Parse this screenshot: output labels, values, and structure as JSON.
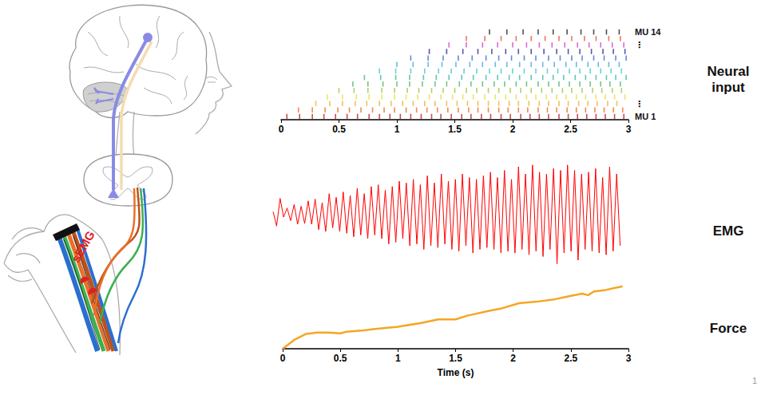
{
  "illustration": {
    "label": "sEMG"
  },
  "page_number": "1",
  "chart_data": [
    {
      "type": "raster",
      "title": "Neural input",
      "xlim": [
        0,
        3
      ],
      "xticks": [
        0,
        0.5,
        1,
        1.5,
        2,
        2.5,
        3
      ],
      "tick_labels": "x",
      "unit_labels": [
        "MU 14",
        "⋮",
        "⋮",
        "MU 1"
      ],
      "units": [
        {
          "color": "#c02020",
          "spikes": [
            0.05,
            0.16,
            0.27,
            0.37,
            0.47,
            0.57,
            0.66,
            0.76,
            0.85,
            0.94,
            1.03,
            1.12,
            1.21,
            1.3,
            1.38,
            1.47,
            1.56,
            1.64,
            1.73,
            1.81,
            1.9,
            1.98,
            2.07,
            2.15,
            2.23,
            2.31,
            2.4,
            2.48,
            2.56,
            2.64,
            2.72,
            2.8,
            2.88,
            2.96
          ]
        },
        {
          "color": "#e8702a",
          "spikes": [
            0.15,
            0.27,
            0.38,
            0.49,
            0.59,
            0.69,
            0.79,
            0.89,
            0.98,
            1.08,
            1.17,
            1.26,
            1.35,
            1.44,
            1.53,
            1.62,
            1.7,
            1.79,
            1.88,
            1.96,
            2.05,
            2.13,
            2.22,
            2.3,
            2.38,
            2.47,
            2.55,
            2.63,
            2.71,
            2.79,
            2.87,
            2.95
          ]
        },
        {
          "color": "#f0b030",
          "spikes": [
            0.3,
            0.42,
            0.53,
            0.64,
            0.74,
            0.85,
            0.95,
            1.05,
            1.14,
            1.24,
            1.33,
            1.43,
            1.52,
            1.61,
            1.7,
            1.79,
            1.88,
            1.97,
            2.05,
            2.14,
            2.23,
            2.31,
            2.4,
            2.48,
            2.57,
            2.65,
            2.73,
            2.82,
            2.9
          ]
        },
        {
          "color": "#e6e03a",
          "spikes": [
            0.4,
            0.53,
            0.65,
            0.76,
            0.87,
            0.98,
            1.08,
            1.18,
            1.28,
            1.38,
            1.48,
            1.57,
            1.66,
            1.76,
            1.85,
            1.94,
            2.03,
            2.12,
            2.2,
            2.29,
            2.38,
            2.46,
            2.55,
            2.63,
            2.72,
            2.8,
            2.88,
            2.97
          ]
        },
        {
          "color": "#9ac93c",
          "spikes": [
            0.5,
            0.63,
            0.75,
            0.87,
            0.98,
            1.09,
            1.19,
            1.3,
            1.4,
            1.5,
            1.6,
            1.69,
            1.79,
            1.88,
            1.98,
            2.07,
            2.16,
            2.25,
            2.34,
            2.43,
            2.51,
            2.6,
            2.69,
            2.77,
            2.86,
            2.94
          ]
        },
        {
          "color": "#49b86a",
          "spikes": [
            0.62,
            0.75,
            0.88,
            1.0,
            1.11,
            1.22,
            1.33,
            1.43,
            1.54,
            1.64,
            1.74,
            1.84,
            1.93,
            2.03,
            2.12,
            2.22,
            2.31,
            2.4,
            2.49,
            2.58,
            2.67,
            2.76,
            2.84,
            2.93
          ]
        },
        {
          "color": "#3cb8a0",
          "spikes": [
            0.72,
            0.86,
            0.99,
            1.11,
            1.23,
            1.34,
            1.45,
            1.56,
            1.66,
            1.77,
            1.87,
            1.97,
            2.06,
            2.16,
            2.26,
            2.35,
            2.44,
            2.54,
            2.63,
            2.72,
            2.81,
            2.89,
            2.98
          ]
        },
        {
          "color": "#40c8c8",
          "spikes": [
            0.85,
            0.99,
            1.12,
            1.24,
            1.36,
            1.47,
            1.58,
            1.69,
            1.8,
            1.9,
            2.0,
            2.1,
            2.2,
            2.3,
            2.39,
            2.49,
            2.58,
            2.67,
            2.76,
            2.85,
            2.94
          ]
        },
        {
          "color": "#3fa9e0",
          "spikes": [
            1.0,
            1.14,
            1.27,
            1.39,
            1.51,
            1.63,
            1.74,
            1.85,
            1.95,
            2.06,
            2.16,
            2.26,
            2.36,
            2.46,
            2.55,
            2.65,
            2.74,
            2.83,
            2.92
          ]
        },
        {
          "color": "#3a6fd0",
          "spikes": [
            1.12,
            1.27,
            1.4,
            1.53,
            1.65,
            1.77,
            1.88,
            1.99,
            2.1,
            2.2,
            2.31,
            2.41,
            2.51,
            2.6,
            2.7,
            2.79,
            2.89,
            2.98
          ]
        },
        {
          "color": "#2c2c8c",
          "spikes": [
            1.28,
            1.43,
            1.57,
            1.7,
            1.82,
            1.94,
            2.05,
            2.16,
            2.27,
            2.38,
            2.48,
            2.58,
            2.68,
            2.78,
            2.87,
            2.97
          ]
        },
        {
          "color": "#d43fd4",
          "spikes": [
            1.45,
            1.6,
            1.74,
            1.87,
            2.0,
            2.12,
            2.23,
            2.34,
            2.45,
            2.56,
            2.66,
            2.76,
            2.86,
            2.96
          ]
        },
        {
          "color": "#e8553a",
          "spikes": [
            1.6,
            1.76,
            1.9,
            2.03,
            2.16,
            2.28,
            2.4,
            2.51,
            2.62,
            2.72,
            2.83,
            2.93
          ]
        },
        {
          "color": "#222222",
          "spikes": [
            1.8,
            1.95,
            2.09,
            2.22,
            2.35,
            2.47,
            2.59,
            2.7,
            2.81,
            2.92
          ]
        }
      ]
    },
    {
      "type": "line",
      "title": "EMG",
      "color": "#ff0000",
      "tick_labels": false,
      "xlim": [
        0,
        3
      ],
      "ylim": [
        -1.5,
        1.5
      ],
      "x": [
        0,
        0.03,
        0.06,
        0.09,
        0.12,
        0.15,
        0.18,
        0.21,
        0.24,
        0.27,
        0.3,
        0.33,
        0.36,
        0.39,
        0.42,
        0.45,
        0.48,
        0.51,
        0.54,
        0.57,
        0.6,
        0.63,
        0.66,
        0.69,
        0.72,
        0.75,
        0.78,
        0.81,
        0.84,
        0.87,
        0.9,
        0.93,
        0.96,
        0.99,
        1.02,
        1.05,
        1.08,
        1.11,
        1.14,
        1.17,
        1.2,
        1.23,
        1.26,
        1.29,
        1.32,
        1.35,
        1.38,
        1.41,
        1.44,
        1.47,
        1.5,
        1.53,
        1.56,
        1.59,
        1.62,
        1.65,
        1.68,
        1.71,
        1.74,
        1.77,
        1.8,
        1.83,
        1.86,
        1.89,
        1.92,
        1.95,
        1.98,
        2.01,
        2.04,
        2.07,
        2.1,
        2.13,
        2.16,
        2.19,
        2.22,
        2.25,
        2.28,
        2.31,
        2.34,
        2.37,
        2.4,
        2.43,
        2.46,
        2.49,
        2.52,
        2.55,
        2.58,
        2.61,
        2.64,
        2.67,
        2.7,
        2.73,
        2.76,
        2.79,
        2.82,
        2.85,
        2.88,
        2.91,
        2.94,
        2.97
      ],
      "values": [
        0.05,
        -0.35,
        0.42,
        -0.1,
        0.15,
        -0.2,
        0.25,
        -0.3,
        0.2,
        -0.28,
        0.35,
        -0.3,
        0.4,
        -0.45,
        0.3,
        -0.5,
        0.55,
        -0.4,
        0.45,
        -0.5,
        0.6,
        -0.55,
        0.5,
        -0.65,
        0.7,
        -0.6,
        0.55,
        -0.7,
        0.75,
        -0.6,
        0.8,
        -0.7,
        0.65,
        -0.85,
        0.75,
        -0.8,
        0.9,
        -0.7,
        0.85,
        -0.9,
        0.95,
        -0.85,
        0.8,
        -1.0,
        1.05,
        -0.9,
        0.85,
        -0.95,
        1.1,
        -0.85,
        0.9,
        -1.0,
        0.95,
        -1.05,
        1.1,
        -0.9,
        1.0,
        -1.1,
        0.95,
        -1.0,
        1.05,
        -0.95,
        1.15,
        -1.0,
        1.0,
        -1.1,
        1.2,
        -1.05,
        0.95,
        -1.1,
        1.3,
        -1.0,
        1.1,
        -1.15,
        1.35,
        -1.05,
        1.15,
        -1.2,
        1.1,
        -1.0,
        1.25,
        -1.4,
        1.2,
        -1.1,
        1.35,
        -1.05,
        1.2,
        -1.3,
        1.1,
        -1.0,
        1.15,
        -1.05,
        1.25,
        -1.1,
        1.0,
        -1.15,
        1.3,
        -1.05,
        1.1,
        -0.9
      ]
    },
    {
      "type": "line",
      "title": "Force",
      "color": "#f5a623",
      "tick_labels": "x",
      "xlabel": "Time (s)",
      "xlim": [
        0,
        3
      ],
      "xticks": [
        0,
        0.5,
        1,
        1.5,
        2,
        2.5,
        3
      ],
      "ylim": [
        0,
        1
      ],
      "x": [
        0,
        0.1,
        0.2,
        0.3,
        0.4,
        0.5,
        0.55,
        0.7,
        0.8,
        1.0,
        1.2,
        1.35,
        1.5,
        1.6,
        1.8,
        1.9,
        2.05,
        2.2,
        2.35,
        2.5,
        2.6,
        2.65,
        2.7,
        2.8,
        2.95
      ],
      "values": [
        0,
        0.12,
        0.2,
        0.22,
        0.22,
        0.21,
        0.23,
        0.25,
        0.27,
        0.3,
        0.35,
        0.4,
        0.4,
        0.45,
        0.52,
        0.55,
        0.62,
        0.64,
        0.67,
        0.72,
        0.75,
        0.73,
        0.78,
        0.8,
        0.85
      ]
    }
  ]
}
